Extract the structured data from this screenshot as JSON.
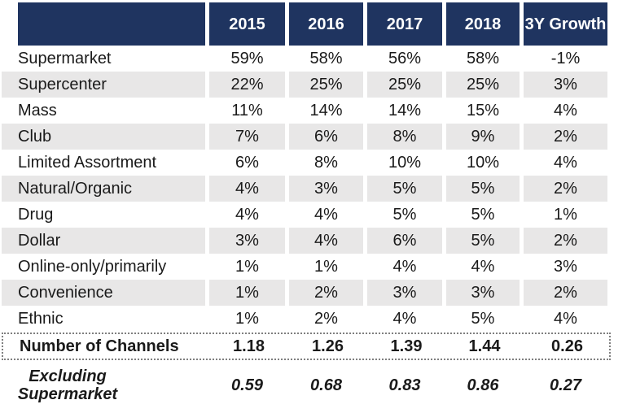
{
  "colors": {
    "header_bg": "#1f3460",
    "header_text": "#ffffff",
    "row_stripe": "#e8e7e7",
    "body_text": "#1a1a1a",
    "dotted_border": "#7f7f7f"
  },
  "chart_data": {
    "type": "table",
    "columns": [
      "2015",
      "2016",
      "2017",
      "2018",
      "3Y Growth"
    ],
    "rows": [
      {
        "label": "Supermarket",
        "values": [
          "59%",
          "58%",
          "56%",
          "58%",
          "-1%"
        ]
      },
      {
        "label": "Supercenter",
        "values": [
          "22%",
          "25%",
          "25%",
          "25%",
          "3%"
        ]
      },
      {
        "label": "Mass",
        "values": [
          "11%",
          "14%",
          "14%",
          "15%",
          "4%"
        ]
      },
      {
        "label": "Club",
        "values": [
          "7%",
          "6%",
          "8%",
          "9%",
          "2%"
        ]
      },
      {
        "label": "Limited Assortment",
        "values": [
          "6%",
          "8%",
          "10%",
          "10%",
          "4%"
        ]
      },
      {
        "label": "Natural/Organic",
        "values": [
          "4%",
          "3%",
          "5%",
          "5%",
          "2%"
        ]
      },
      {
        "label": "Drug",
        "values": [
          "4%",
          "4%",
          "5%",
          "5%",
          "1%"
        ]
      },
      {
        "label": "Dollar",
        "values": [
          "3%",
          "4%",
          "6%",
          "5%",
          "2%"
        ]
      },
      {
        "label": "Online-only/primarily",
        "values": [
          "1%",
          "1%",
          "4%",
          "4%",
          "3%"
        ]
      },
      {
        "label": "Convenience",
        "values": [
          "1%",
          "2%",
          "3%",
          "3%",
          "2%"
        ]
      },
      {
        "label": "Ethnic",
        "values": [
          "1%",
          "2%",
          "4%",
          "5%",
          "4%"
        ]
      }
    ],
    "number_of_channels": {
      "label": "Number of Channels",
      "values": [
        "1.18",
        "1.26",
        "1.39",
        "1.44",
        "0.26"
      ]
    },
    "excluding_supermarket": {
      "label_lines": [
        "Excluding",
        "Supermarket"
      ],
      "values": [
        "0.59",
        "0.68",
        "0.83",
        "0.86",
        "0.27"
      ]
    }
  }
}
